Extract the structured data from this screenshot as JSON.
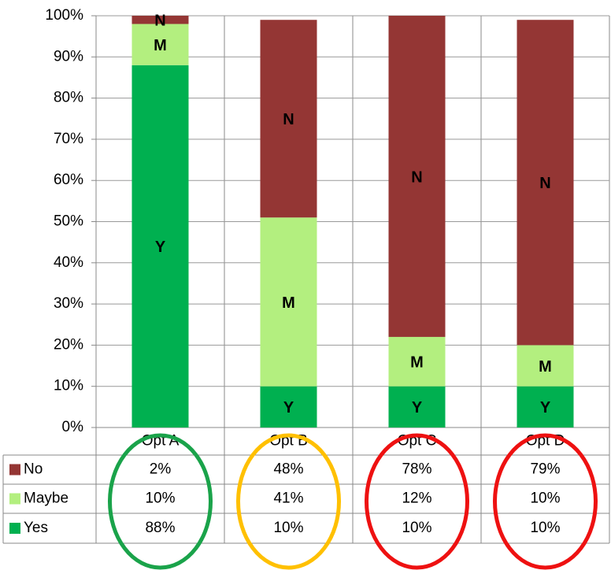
{
  "chart_data": {
    "type": "stacked_bar",
    "categories": [
      "Opt A",
      "Opt B",
      "Opt C",
      "Opt D"
    ],
    "series": [
      {
        "name": "Yes",
        "label": "Y",
        "color": "#00b050",
        "values": [
          88,
          10,
          10,
          10
        ],
        "value_labels": [
          "88%",
          "10%",
          "10%",
          "10%"
        ]
      },
      {
        "name": "Maybe",
        "label": "M",
        "color": "#b3ef7f",
        "values": [
          10,
          41,
          12,
          10
        ],
        "value_labels": [
          "10%",
          "41%",
          "12%",
          "10%"
        ]
      },
      {
        "name": "No",
        "label": "N",
        "color": "#943634",
        "values": [
          2,
          48,
          78,
          79
        ],
        "value_labels": [
          "2%",
          "48%",
          "78%",
          "79%"
        ]
      }
    ],
    "ylim": [
      0,
      100
    ],
    "yticks": [
      {
        "value": 0,
        "label": "0%"
      },
      {
        "value": 10,
        "label": "10%"
      },
      {
        "value": 20,
        "label": "20%"
      },
      {
        "value": 30,
        "label": "30%"
      },
      {
        "value": 40,
        "label": "40%"
      },
      {
        "value": 50,
        "label": "50%"
      },
      {
        "value": 60,
        "label": "60%"
      },
      {
        "value": 70,
        "label": "70%"
      },
      {
        "value": 80,
        "label": "80%"
      },
      {
        "value": 90,
        "label": "90%"
      },
      {
        "value": 100,
        "label": "100%"
      }
    ],
    "grid": true
  }
}
